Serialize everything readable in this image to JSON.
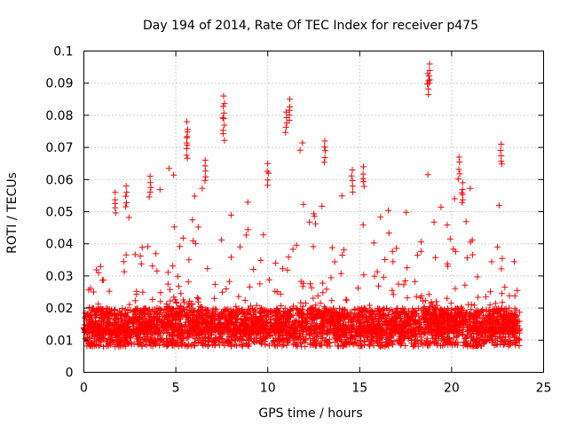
{
  "chart_data": {
    "type": "scatter",
    "title": "Day 194 of 2014, Rate Of TEC Index for receiver p475",
    "xlabel": "GPS time / hours",
    "ylabel": "ROTI / TECUs",
    "xlim": [
      0,
      25
    ],
    "ylim": [
      0,
      0.1
    ],
    "xticks": [
      0,
      5,
      10,
      15,
      20,
      25
    ],
    "yticks": [
      0,
      0.01,
      0.02,
      0.03,
      0.04,
      0.05,
      0.06,
      0.07,
      0.08,
      0.09,
      0.1
    ],
    "xtick_labels": [
      "0",
      "5",
      "10",
      "15",
      "20",
      "25"
    ],
    "ytick_labels": [
      "0",
      "0.01",
      "0.02",
      "0.03",
      "0.04",
      "0.05",
      "0.06",
      "0.07",
      "0.08",
      "0.09",
      "0.1"
    ],
    "grid": true,
    "marker": "+",
    "color": "#ff0000",
    "x_data_range": [
      0,
      23.7
    ],
    "typical_band": [
      0.005,
      0.03
    ],
    "notable_peaks": [
      {
        "x": 18.8,
        "y": 0.096
      },
      {
        "x": 18.7,
        "y": 0.093
      },
      {
        "x": 7.6,
        "y": 0.086
      },
      {
        "x": 11.2,
        "y": 0.085
      },
      {
        "x": 7.6,
        "y": 0.079
      },
      {
        "x": 11.0,
        "y": 0.081
      },
      {
        "x": 5.6,
        "y": 0.078
      },
      {
        "x": 5.6,
        "y": 0.073
      },
      {
        "x": 13.1,
        "y": 0.072
      },
      {
        "x": 22.7,
        "y": 0.071
      },
      {
        "x": 20.4,
        "y": 0.067
      },
      {
        "x": 6.6,
        "y": 0.066
      },
      {
        "x": 10.0,
        "y": 0.065
      },
      {
        "x": 15.2,
        "y": 0.064
      },
      {
        "x": 14.6,
        "y": 0.063
      },
      {
        "x": 3.6,
        "y": 0.061
      },
      {
        "x": 20.6,
        "y": 0.059
      },
      {
        "x": 2.3,
        "y": 0.058
      },
      {
        "x": 1.7,
        "y": 0.056
      }
    ]
  }
}
